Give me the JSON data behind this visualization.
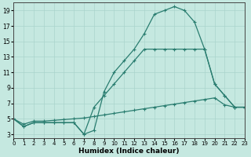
{
  "xlabel": "Humidex (Indice chaleur)",
  "x_values": [
    0,
    1,
    2,
    3,
    4,
    5,
    6,
    7,
    8,
    9,
    10,
    11,
    12,
    13,
    14,
    15,
    16,
    17,
    18,
    19,
    20,
    21,
    22,
    23
  ],
  "line1_y": [
    5,
    4,
    4.5,
    4.5,
    4.5,
    4.5,
    4.5,
    3,
    3.5,
    8.5,
    11,
    12.5,
    14,
    16,
    18.5,
    19,
    19.5,
    19,
    17.5,
    14,
    9.5,
    8,
    6.5,
    6.5
  ],
  "line2_y": [
    5,
    4,
    4.5,
    4.5,
    4.5,
    4.5,
    4.5,
    3,
    6.5,
    8,
    9.5,
    11,
    12.5,
    14,
    14,
    14,
    14,
    14,
    14,
    14,
    9.5,
    8,
    6.5,
    6.5
  ],
  "line3_y": [
    5.0,
    4.3,
    4.7,
    4.7,
    4.8,
    4.9,
    5.0,
    5.1,
    5.3,
    5.5,
    5.7,
    5.9,
    6.1,
    6.3,
    6.5,
    6.7,
    6.9,
    7.1,
    7.3,
    7.5,
    7.7,
    6.8,
    6.5,
    6.5
  ],
  "line_color": "#2a7d70",
  "bg_color": "#c5e8e0",
  "grid_color": "#aad4cc",
  "ylim": [
    2.5,
    20.0
  ],
  "xlim": [
    0,
    23
  ],
  "yticks": [
    3,
    5,
    7,
    9,
    11,
    13,
    15,
    17,
    19
  ],
  "xticks": [
    0,
    1,
    2,
    3,
    4,
    5,
    6,
    7,
    8,
    9,
    10,
    11,
    12,
    13,
    14,
    15,
    16,
    17,
    18,
    19,
    20,
    21,
    22,
    23
  ],
  "xlabel_fontsize": 6.5,
  "tick_labelsize": 5.5,
  "marker_size": 3.5,
  "linewidth": 0.9
}
